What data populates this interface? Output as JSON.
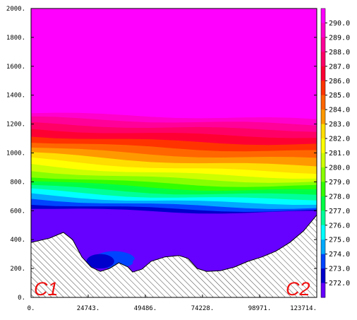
{
  "chart_data": {
    "type": "contour",
    "x_ticks": [
      "0.",
      "24743.",
      "49486.",
      "74228.",
      "98971.",
      "123714."
    ],
    "x_values": [
      0,
      24743,
      49486,
      74228,
      98971,
      123714
    ],
    "y_ticks": [
      "0.",
      "200.",
      "400.",
      "600.",
      "800.",
      "1000.",
      "1200.",
      "1400.",
      "1600.",
      "1800.",
      "2000."
    ],
    "y_values": [
      0,
      200,
      400,
      600,
      800,
      1000,
      1200,
      1400,
      1600,
      1800,
      2000
    ],
    "xlim": [
      0,
      123714
    ],
    "ylim": [
      0,
      2000
    ],
    "colorbar": {
      "levels": [
        "290.0",
        "289.0",
        "288.0",
        "287.0",
        "286.0",
        "285.0",
        "284.0",
        "283.0",
        "282.0",
        "281.0",
        "280.0",
        "279.0",
        "278.0",
        "277.0",
        "276.0",
        "275.0",
        "274.0",
        "273.0",
        "272.0"
      ],
      "colors": [
        "#ff00ff",
        "#ff00cc",
        "#ff0099",
        "#ff0066",
        "#ff0033",
        "#ff3300",
        "#ff6600",
        "#ff9900",
        "#ffdd00",
        "#ffff00",
        "#ccff00",
        "#88ff00",
        "#33ff00",
        "#00ff44",
        "#00ff99",
        "#00ffff",
        "#00aaff",
        "#0044ff",
        "#0000cc",
        "#6600ff"
      ]
    },
    "labels": {
      "left": "C1",
      "right": "C2"
    },
    "terrain": [
      [
        0,
        380
      ],
      [
        8000,
        410
      ],
      [
        14000,
        450
      ],
      [
        18000,
        400
      ],
      [
        22000,
        280
      ],
      [
        26000,
        210
      ],
      [
        30000,
        180
      ],
      [
        34000,
        200
      ],
      [
        38000,
        240
      ],
      [
        42000,
        210
      ],
      [
        44000,
        175
      ],
      [
        48000,
        195
      ],
      [
        52000,
        250
      ],
      [
        58000,
        280
      ],
      [
        64000,
        290
      ],
      [
        68000,
        270
      ],
      [
        72000,
        200
      ],
      [
        76000,
        180
      ],
      [
        82000,
        185
      ],
      [
        88000,
        210
      ],
      [
        94000,
        250
      ],
      [
        100000,
        280
      ],
      [
        106000,
        320
      ],
      [
        112000,
        380
      ],
      [
        118000,
        460
      ],
      [
        123714,
        570
      ]
    ],
    "band_top": [
      1275,
      1245,
      1205,
      1165,
      1120,
      1080,
      1040,
      1000,
      960,
      920,
      880,
      840,
      810,
      775,
      745,
      715,
      685,
      650,
      620,
      590,
      550,
      510,
      470
    ],
    "band_top_right": [
      1230,
      1195,
      1155,
      1110,
      1060,
      1010,
      960,
      910,
      865,
      830,
      800,
      770,
      740,
      710,
      680,
      650,
      620,
      600,
      590,
      580,
      575,
      575,
      575
    ]
  }
}
